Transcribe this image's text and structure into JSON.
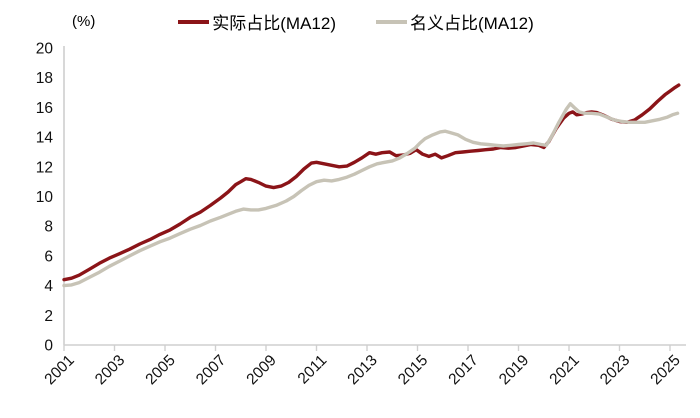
{
  "header": {
    "unit_label": "(%)"
  },
  "chart_data": {
    "type": "line",
    "title": "",
    "xlabel": "",
    "ylabel": "(%)",
    "grid": false,
    "legend_position": "top-center",
    "axis_color": "#CFCFCF",
    "tick_label_color": "#111111",
    "ylim": [
      0,
      20
    ],
    "xlim": [
      2001,
      2025.6
    ],
    "y_ticks": [
      0,
      2,
      4,
      6,
      8,
      10,
      12,
      14,
      16,
      18,
      20
    ],
    "x_ticks": [
      2001,
      2003,
      2005,
      2007,
      2009,
      2011,
      2013,
      2015,
      2017,
      2019,
      2021,
      2023,
      2025
    ],
    "series": [
      {
        "name": "实际占比(MA12)",
        "color": "#8B1418",
        "points": [
          [
            2001.0,
            4.4
          ],
          [
            2001.3,
            4.5
          ],
          [
            2001.6,
            4.7
          ],
          [
            2002.0,
            5.1
          ],
          [
            2002.4,
            5.5
          ],
          [
            2002.8,
            5.85
          ],
          [
            2003.2,
            6.15
          ],
          [
            2003.6,
            6.45
          ],
          [
            2004.0,
            6.8
          ],
          [
            2004.4,
            7.1
          ],
          [
            2004.8,
            7.45
          ],
          [
            2005.2,
            7.75
          ],
          [
            2005.6,
            8.15
          ],
          [
            2006.0,
            8.6
          ],
          [
            2006.4,
            8.95
          ],
          [
            2006.8,
            9.4
          ],
          [
            2007.2,
            9.9
          ],
          [
            2007.5,
            10.3
          ],
          [
            2007.8,
            10.8
          ],
          [
            2008.0,
            11.0
          ],
          [
            2008.2,
            11.2
          ],
          [
            2008.4,
            11.15
          ],
          [
            2008.7,
            10.95
          ],
          [
            2009.0,
            10.7
          ],
          [
            2009.3,
            10.6
          ],
          [
            2009.6,
            10.7
          ],
          [
            2009.9,
            10.95
          ],
          [
            2010.2,
            11.35
          ],
          [
            2010.5,
            11.85
          ],
          [
            2010.8,
            12.25
          ],
          [
            2011.0,
            12.3
          ],
          [
            2011.3,
            12.2
          ],
          [
            2011.6,
            12.1
          ],
          [
            2011.9,
            12.0
          ],
          [
            2012.2,
            12.05
          ],
          [
            2012.5,
            12.3
          ],
          [
            2012.8,
            12.6
          ],
          [
            2013.1,
            12.95
          ],
          [
            2013.35,
            12.85
          ],
          [
            2013.6,
            12.95
          ],
          [
            2013.9,
            13.0
          ],
          [
            2014.15,
            12.75
          ],
          [
            2014.45,
            12.8
          ],
          [
            2014.7,
            12.9
          ],
          [
            2014.95,
            13.15
          ],
          [
            2015.2,
            12.85
          ],
          [
            2015.45,
            12.7
          ],
          [
            2015.7,
            12.85
          ],
          [
            2015.95,
            12.6
          ],
          [
            2016.2,
            12.75
          ],
          [
            2016.5,
            12.95
          ],
          [
            2016.8,
            13.0
          ],
          [
            2017.1,
            13.05
          ],
          [
            2017.4,
            13.1
          ],
          [
            2017.7,
            13.15
          ],
          [
            2018.0,
            13.2
          ],
          [
            2018.3,
            13.3
          ],
          [
            2018.6,
            13.25
          ],
          [
            2018.9,
            13.3
          ],
          [
            2019.2,
            13.4
          ],
          [
            2019.5,
            13.5
          ],
          [
            2019.8,
            13.45
          ],
          [
            2020.0,
            13.3
          ],
          [
            2020.2,
            13.7
          ],
          [
            2020.5,
            14.6
          ],
          [
            2020.8,
            15.3
          ],
          [
            2021.0,
            15.6
          ],
          [
            2021.15,
            15.7
          ],
          [
            2021.3,
            15.5
          ],
          [
            2021.5,
            15.55
          ],
          [
            2021.7,
            15.65
          ],
          [
            2021.9,
            15.7
          ],
          [
            2022.1,
            15.65
          ],
          [
            2022.4,
            15.45
          ],
          [
            2022.7,
            15.2
          ],
          [
            2023.0,
            15.05
          ],
          [
            2023.3,
            15.0
          ],
          [
            2023.6,
            15.15
          ],
          [
            2023.9,
            15.5
          ],
          [
            2024.2,
            15.9
          ],
          [
            2024.5,
            16.4
          ],
          [
            2024.8,
            16.85
          ],
          [
            2025.0,
            17.1
          ],
          [
            2025.2,
            17.35
          ],
          [
            2025.35,
            17.5
          ]
        ]
      },
      {
        "name": "名义占比(MA12)",
        "color": "#C7C3B6",
        "points": [
          [
            2001.0,
            4.0
          ],
          [
            2001.3,
            4.05
          ],
          [
            2001.6,
            4.2
          ],
          [
            2002.0,
            4.55
          ],
          [
            2002.4,
            4.9
          ],
          [
            2002.8,
            5.3
          ],
          [
            2003.2,
            5.65
          ],
          [
            2003.6,
            6.0
          ],
          [
            2004.0,
            6.35
          ],
          [
            2004.4,
            6.65
          ],
          [
            2004.8,
            6.95
          ],
          [
            2005.2,
            7.2
          ],
          [
            2005.6,
            7.5
          ],
          [
            2006.0,
            7.8
          ],
          [
            2006.4,
            8.05
          ],
          [
            2006.8,
            8.35
          ],
          [
            2007.2,
            8.6
          ],
          [
            2007.5,
            8.8
          ],
          [
            2007.8,
            9.0
          ],
          [
            2008.1,
            9.15
          ],
          [
            2008.4,
            9.1
          ],
          [
            2008.7,
            9.1
          ],
          [
            2009.0,
            9.2
          ],
          [
            2009.4,
            9.4
          ],
          [
            2009.8,
            9.7
          ],
          [
            2010.1,
            10.0
          ],
          [
            2010.4,
            10.4
          ],
          [
            2010.7,
            10.75
          ],
          [
            2011.0,
            11.0
          ],
          [
            2011.3,
            11.1
          ],
          [
            2011.6,
            11.05
          ],
          [
            2011.9,
            11.15
          ],
          [
            2012.2,
            11.3
          ],
          [
            2012.5,
            11.5
          ],
          [
            2012.8,
            11.75
          ],
          [
            2013.1,
            12.0
          ],
          [
            2013.4,
            12.2
          ],
          [
            2013.7,
            12.3
          ],
          [
            2014.0,
            12.4
          ],
          [
            2014.3,
            12.6
          ],
          [
            2014.6,
            12.9
          ],
          [
            2014.9,
            13.25
          ],
          [
            2015.1,
            13.6
          ],
          [
            2015.3,
            13.9
          ],
          [
            2015.6,
            14.15
          ],
          [
            2015.9,
            14.35
          ],
          [
            2016.1,
            14.4
          ],
          [
            2016.3,
            14.3
          ],
          [
            2016.6,
            14.15
          ],
          [
            2016.9,
            13.85
          ],
          [
            2017.2,
            13.65
          ],
          [
            2017.5,
            13.55
          ],
          [
            2017.8,
            13.5
          ],
          [
            2018.1,
            13.45
          ],
          [
            2018.4,
            13.4
          ],
          [
            2018.7,
            13.45
          ],
          [
            2019.0,
            13.5
          ],
          [
            2019.3,
            13.55
          ],
          [
            2019.6,
            13.6
          ],
          [
            2019.9,
            13.5
          ],
          [
            2020.1,
            13.45
          ],
          [
            2020.3,
            14.0
          ],
          [
            2020.6,
            15.0
          ],
          [
            2020.9,
            15.9
          ],
          [
            2021.05,
            16.25
          ],
          [
            2021.2,
            16.0
          ],
          [
            2021.4,
            15.7
          ],
          [
            2021.6,
            15.6
          ],
          [
            2021.9,
            15.6
          ],
          [
            2022.2,
            15.55
          ],
          [
            2022.5,
            15.35
          ],
          [
            2022.8,
            15.15
          ],
          [
            2023.1,
            15.05
          ],
          [
            2023.4,
            15.0
          ],
          [
            2023.7,
            15.0
          ],
          [
            2024.0,
            15.0
          ],
          [
            2024.3,
            15.1
          ],
          [
            2024.6,
            15.2
          ],
          [
            2024.9,
            15.35
          ],
          [
            2025.1,
            15.5
          ],
          [
            2025.3,
            15.6
          ]
        ]
      }
    ]
  }
}
